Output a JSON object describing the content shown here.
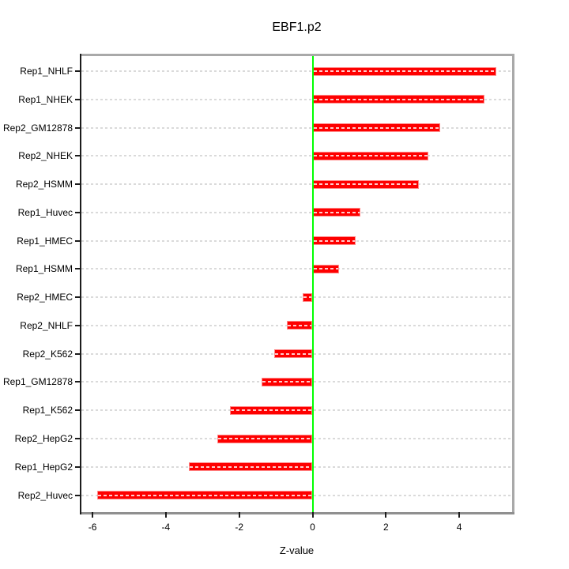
{
  "title": "EBF1.p2",
  "chart_data": {
    "type": "bar",
    "orientation": "horizontal",
    "title": "EBF1.p2",
    "xlabel": "Z-value",
    "categories": [
      "Rep1_NHLF",
      "Rep1_NHEK",
      "Rep2_GM12878",
      "Rep2_NHEK",
      "Rep2_HSMM",
      "Rep1_Huvec",
      "Rep1_HMEC",
      "Rep1_HSMM",
      "Rep2_HMEC",
      "Rep2_NHLF",
      "Rep2_K562",
      "Rep1_GM12878",
      "Rep1_K562",
      "Rep2_HepG2",
      "Rep1_HepG2",
      "Rep2_Huvec"
    ],
    "values": [
      5.0,
      4.69,
      3.49,
      3.15,
      2.9,
      1.31,
      1.18,
      0.73,
      -0.27,
      -0.7,
      -1.05,
      -1.38,
      -2.26,
      -2.59,
      -3.37,
      -5.87
    ],
    "xlim": [
      -6.3,
      5.44
    ],
    "xticks": [
      -6,
      -4,
      -2,
      0,
      2,
      4
    ],
    "grid": true,
    "legend": false,
    "colors": {
      "bar": "#fe0000",
      "bar_border": "#ff8a8a",
      "zero_line": "#00ff00",
      "grid_line": "#dadada",
      "box_border": "#a9a9a9",
      "axis_line": "#1c1c1c",
      "text": "#000000"
    }
  }
}
